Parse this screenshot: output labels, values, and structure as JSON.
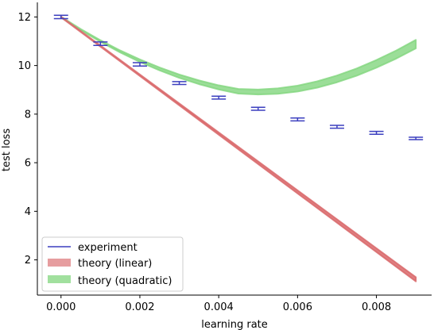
{
  "chart_data": {
    "type": "line",
    "title": "",
    "xlabel": "learning rate",
    "ylabel": "test loss",
    "xlim": [
      -0.0006,
      0.0094
    ],
    "ylim": [
      0.55,
      12.6
    ],
    "x_ticks": [
      0.0,
      0.002,
      0.004,
      0.006,
      0.008
    ],
    "x_tick_labels": [
      "0.000",
      "0.002",
      "0.004",
      "0.006",
      "0.008"
    ],
    "y_ticks": [
      2,
      4,
      6,
      8,
      10,
      12
    ],
    "y_tick_labels": [
      "2",
      "4",
      "6",
      "8",
      "10",
      "12"
    ],
    "grid": false,
    "spines": "left-bottom",
    "legend_position": "lower-left",
    "legend": [
      "experiment",
      "theory (linear)",
      "theory (quadratic)"
    ],
    "series": [
      {
        "name": "experiment",
        "kind": "errorbar",
        "color": "#3b3fbf",
        "x": [
          0.0,
          0.001,
          0.002,
          0.003,
          0.004,
          0.005,
          0.006,
          0.007,
          0.008,
          0.009
        ],
        "y": [
          12.0,
          10.9,
          10.05,
          9.28,
          8.68,
          8.22,
          7.78,
          7.48,
          7.23,
          7.0
        ],
        "yerr": [
          0.07,
          0.07,
          0.07,
          0.06,
          0.06,
          0.06,
          0.06,
          0.06,
          0.06,
          0.05
        ]
      },
      {
        "name": "theory (linear)",
        "kind": "band",
        "color": "#d9696b",
        "x": [
          0.0,
          0.009
        ],
        "y": [
          12.0,
          1.2
        ],
        "band_halfwidth_at_end": 0.07
      },
      {
        "name": "theory (quadratic)",
        "kind": "band",
        "color": "#82d67e",
        "x": [
          0.0,
          0.0005,
          0.001,
          0.0015,
          0.002,
          0.0025,
          0.003,
          0.0035,
          0.004,
          0.0045,
          0.005,
          0.0055,
          0.006,
          0.0065,
          0.007,
          0.0075,
          0.008,
          0.0085,
          0.009
        ],
        "y": [
          12.0,
          11.48,
          11.01,
          10.58,
          10.2,
          9.86,
          9.56,
          9.31,
          9.1,
          8.94,
          8.91,
          8.95,
          9.05,
          9.22,
          9.45,
          9.73,
          10.07,
          10.45,
          10.88
        ],
        "band_halfwidth_at_end": 0.16
      }
    ]
  }
}
